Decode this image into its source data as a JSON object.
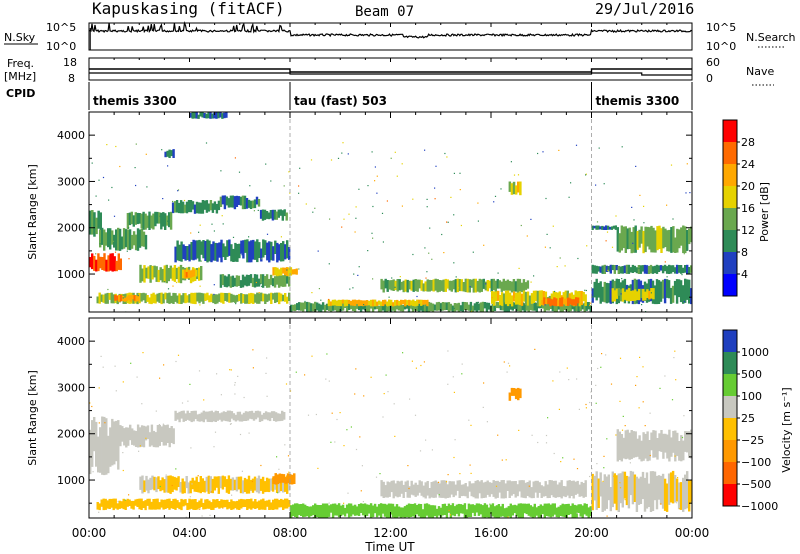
{
  "header": {
    "station": "Kapuskasing (fitACF)",
    "beam": "Beam 07",
    "date": "29/Jul/2016"
  },
  "noise_panel": {
    "left_label": "N.Sky",
    "right_label": "N.Search",
    "left_ticks": [
      "10^5",
      "10^0"
    ],
    "right_ticks": [
      "10^5",
      "10^0"
    ]
  },
  "freq_panel": {
    "left_label_1": "Freq.",
    "left_label_2": "[MHz]",
    "right_label": "Nave",
    "left_ticks": [
      "18",
      "8"
    ],
    "right_ticks": [
      "60",
      "0"
    ],
    "cpid_label": "CPID"
  },
  "cpid_segments": [
    {
      "label": "themis 3300",
      "start_hour": 0,
      "end_hour": 8
    },
    {
      "label": "tau (fast) 503",
      "start_hour": 8,
      "end_hour": 20
    },
    {
      "label": "themis 3300",
      "start_hour": 20,
      "end_hour": 24
    }
  ],
  "power_colorbar": {
    "title": "Power [dB]",
    "ticks": [
      "28",
      "24",
      "20",
      "16",
      "12",
      "8",
      "4"
    ],
    "colors": [
      "#ff0000",
      "#ff6a00",
      "#ffa800",
      "#e6d200",
      "#6aa84f",
      "#2e8b57",
      "#2040c0",
      "#0000ff"
    ]
  },
  "velocity_colorbar": {
    "title": "Velocity [m s⁻¹]",
    "ticks": [
      "1000",
      "500",
      "100",
      "25",
      "−25",
      "−100",
      "−500",
      "−1000"
    ],
    "colors": [
      "#1f3fbf",
      "#2e8b57",
      "#66cc33",
      "#c8c8c0",
      "#ffc000",
      "#ff9900",
      "#ff6600",
      "#ff0000"
    ]
  },
  "chart_data": {
    "type": "heatmap",
    "x_axis": {
      "label": "Time UT",
      "range_hours": [
        0,
        24
      ],
      "ticks": [
        "00:00",
        "04:00",
        "08:00",
        "12:00",
        "16:00",
        "20:00",
        "00:00"
      ]
    },
    "y_axis": {
      "label": "Slant Range [km]",
      "range_km": [
        180,
        4500
      ],
      "ticks": [
        1000,
        2000,
        3000,
        4000
      ]
    },
    "mode_change_hours": [
      8,
      20
    ],
    "power_blobs": [
      {
        "t0": 0.0,
        "t1": 1.3,
        "r0": 1050,
        "r1": 1450,
        "v": 26
      },
      {
        "t0": 0.0,
        "t1": 0.5,
        "r0": 1800,
        "r1": 2400,
        "v": 8
      },
      {
        "t0": 0.4,
        "t1": 2.3,
        "r0": 1500,
        "r1": 2000,
        "v": 10
      },
      {
        "t0": 1.5,
        "t1": 3.3,
        "r0": 1950,
        "r1": 2350,
        "v": 10
      },
      {
        "t0": 3.3,
        "t1": 5.2,
        "r0": 2300,
        "r1": 2600,
        "v": 8
      },
      {
        "t0": 5.2,
        "t1": 6.8,
        "r0": 2400,
        "r1": 2700,
        "v": 8
      },
      {
        "t0": 6.8,
        "t1": 7.9,
        "r0": 2150,
        "r1": 2400,
        "v": 8
      },
      {
        "t0": 2.0,
        "t1": 4.5,
        "r0": 800,
        "r1": 1200,
        "v": 14
      },
      {
        "t0": 3.7,
        "t1": 4.3,
        "r0": 900,
        "r1": 1100,
        "v": 20
      },
      {
        "t0": 5.2,
        "t1": 8.0,
        "r0": 700,
        "r1": 1000,
        "v": 10
      },
      {
        "t0": 7.3,
        "t1": 8.3,
        "r0": 950,
        "r1": 1150,
        "v": 18
      },
      {
        "t0": 0.3,
        "t1": 8.0,
        "r0": 350,
        "r1": 600,
        "v": 14
      },
      {
        "t0": 1.0,
        "t1": 2.0,
        "r0": 400,
        "r1": 550,
        "v": 22
      },
      {
        "t0": 3.4,
        "t1": 8.0,
        "r0": 1250,
        "r1": 1750,
        "v": 6
      },
      {
        "t0": 3.0,
        "t1": 3.4,
        "r0": 3500,
        "r1": 3700,
        "v": 6
      },
      {
        "t0": 4.0,
        "t1": 5.5,
        "r0": 4350,
        "r1": 4500,
        "v": 6
      },
      {
        "t0": 8.0,
        "t1": 20.0,
        "r0": 180,
        "r1": 400,
        "v": 10
      },
      {
        "t0": 11.6,
        "t1": 17.5,
        "r0": 600,
        "r1": 900,
        "v": 12
      },
      {
        "t0": 16.0,
        "t1": 19.8,
        "r0": 300,
        "r1": 650,
        "v": 16
      },
      {
        "t0": 18.0,
        "t1": 19.5,
        "r0": 300,
        "r1": 500,
        "v": 22
      },
      {
        "t0": 9.5,
        "t1": 13.5,
        "r0": 300,
        "r1": 450,
        "v": 18
      },
      {
        "t0": 16.7,
        "t1": 17.2,
        "r0": 2700,
        "r1": 3000,
        "v": 16
      },
      {
        "t0": 20.0,
        "t1": 24.0,
        "r0": 350,
        "r1": 900,
        "v": 8
      },
      {
        "t0": 20.8,
        "t1": 22.5,
        "r0": 400,
        "r1": 700,
        "v": 16
      },
      {
        "t0": 20.0,
        "t1": 24.0,
        "r0": 1000,
        "r1": 1200,
        "v": 8
      },
      {
        "t0": 21.0,
        "t1": 24.0,
        "r0": 1450,
        "r1": 2050,
        "v": 12
      },
      {
        "t0": 20.0,
        "t1": 21.0,
        "r0": 1950,
        "r1": 2050,
        "v": 6
      }
    ],
    "velocity_blobs": [
      {
        "t0": 0.0,
        "t1": 1.2,
        "r0": 1100,
        "r1": 2400,
        "v": 0
      },
      {
        "t0": 1.2,
        "t1": 3.4,
        "r0": 1700,
        "r1": 2200,
        "v": 0
      },
      {
        "t0": 3.4,
        "t1": 7.8,
        "r0": 2250,
        "r1": 2500,
        "v": 0
      },
      {
        "t0": 0.3,
        "t1": 8.0,
        "r0": 350,
        "r1": 600,
        "v": -80
      },
      {
        "t0": 2.0,
        "t1": 8.0,
        "r0": 700,
        "r1": 1100,
        "v": -30
      },
      {
        "t0": 7.3,
        "t1": 8.2,
        "r0": 900,
        "r1": 1150,
        "v": -150
      },
      {
        "t0": 11.6,
        "t1": 19.8,
        "r0": 600,
        "r1": 1000,
        "v": 0
      },
      {
        "t0": 8.0,
        "t1": 20.0,
        "r0": 180,
        "r1": 500,
        "v": 60
      },
      {
        "t0": 20.0,
        "t1": 24.0,
        "r0": 300,
        "r1": 1200,
        "v": -20
      },
      {
        "t0": 21.0,
        "t1": 24.0,
        "r0": 1400,
        "r1": 2100,
        "v": 0
      },
      {
        "t0": 16.7,
        "t1": 17.2,
        "r0": 2700,
        "r1": 3000,
        "v": -300
      }
    ]
  }
}
